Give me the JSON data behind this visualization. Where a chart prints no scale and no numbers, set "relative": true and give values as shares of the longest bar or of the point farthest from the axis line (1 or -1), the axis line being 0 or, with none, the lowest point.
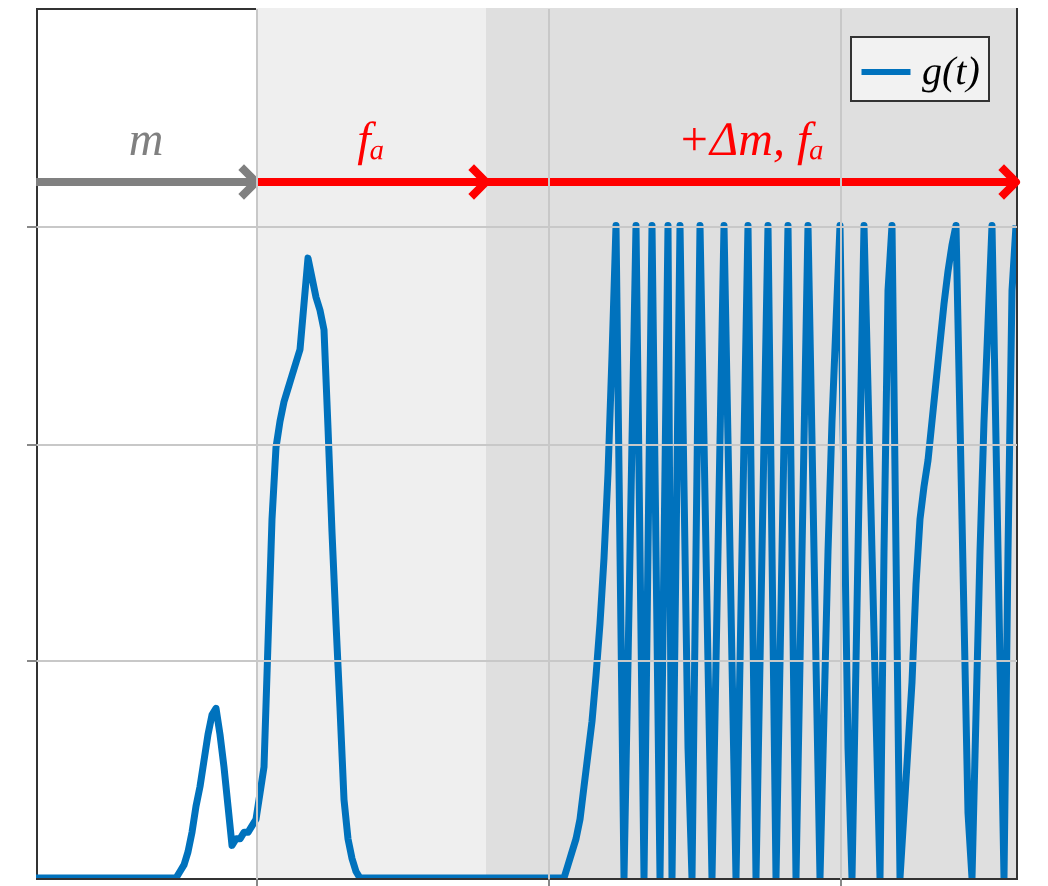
{
  "chart_data": {
    "type": "line",
    "relative": true,
    "grid": true,
    "legend": "top right",
    "categories": [
      null,
      null,
      null,
      null,
      null,
      null,
      null,
      null,
      null,
      null,
      null,
      null,
      null,
      null,
      null,
      null,
      null,
      null,
      null,
      null,
      null,
      null,
      null,
      null,
      null,
      null,
      null,
      null,
      null,
      null,
      null,
      null,
      null,
      null,
      null,
      null,
      null,
      null,
      null,
      null,
      null,
      null,
      null,
      null,
      null,
      null,
      null,
      null,
      null,
      null,
      null,
      null,
      null,
      null,
      null,
      null,
      null,
      null,
      null,
      null,
      null,
      null,
      null,
      null,
      null,
      null,
      null,
      null,
      null,
      null,
      null,
      null,
      null,
      null,
      null,
      null,
      null,
      null,
      null,
      null,
      null,
      null,
      null,
      null,
      null,
      null,
      null,
      null,
      null,
      null,
      null,
      null,
      null,
      null,
      null,
      null,
      null,
      null,
      null,
      null,
      null,
      null,
      null,
      null,
      null,
      null,
      null,
      null,
      null,
      null,
      null,
      null,
      null,
      null,
      null,
      null,
      null,
      null,
      null,
      null,
      null,
      null,
      null,
      null,
      null,
      null,
      null,
      null,
      null,
      null,
      null,
      null,
      null,
      null,
      null,
      null,
      null,
      null,
      null,
      null,
      null,
      null,
      null,
      null,
      null,
      null,
      null,
      null,
      null,
      null,
      null,
      null,
      null,
      null,
      null,
      null,
      null,
      null,
      null,
      null,
      null,
      null,
      null,
      null,
      null,
      null,
      null,
      null,
      null,
      null,
      null,
      null,
      null,
      null,
      null,
      null,
      null,
      null,
      null,
      null,
      null,
      null,
      null,
      null,
      null,
      null,
      null,
      null,
      null,
      null,
      null,
      null,
      null,
      null,
      null,
      null,
      null,
      null,
      null,
      null,
      null,
      null,
      null,
      null,
      null,
      null,
      null,
      null,
      null,
      null,
      null,
      null,
      null,
      null,
      null,
      null,
      null,
      null,
      null,
      null,
      null,
      null,
      null,
      null,
      null,
      null,
      null,
      null,
      null,
      null,
      null,
      null,
      null,
      null,
      null,
      null,
      null,
      null,
      null,
      null,
      null,
      null,
      null,
      null,
      null,
      null
    ],
    "series": [
      {
        "name": "g(t)",
        "color": "#0072bd",
        "values": [
          0,
          0,
          0,
          0,
          0,
          0,
          0,
          0,
          0,
          0,
          0,
          0,
          0,
          0,
          0,
          0,
          0,
          0,
          0,
          0,
          0,
          0,
          0,
          0,
          0,
          0,
          0,
          0,
          0,
          0,
          0,
          0,
          0,
          0,
          0,
          0,
          0.01,
          0.02,
          0.04,
          0.07,
          0.11,
          0.14,
          0.18,
          0.22,
          0.25,
          0.26,
          0.22,
          0.17,
          0.11,
          0.05,
          0.06,
          0.06,
          0.07,
          0.07,
          0.08,
          0.09,
          0.13,
          0.17,
          0.36,
          0.55,
          0.66,
          0.7,
          0.73,
          0.75,
          0.77,
          0.79,
          0.81,
          0.88,
          0.95,
          0.92,
          0.89,
          0.87,
          0.84,
          0.69,
          0.53,
          0.39,
          0.26,
          0.12,
          0.06,
          0.03,
          0.01,
          0,
          0,
          0,
          0,
          0,
          0,
          0,
          0,
          0,
          0,
          0,
          0,
          0,
          0,
          0,
          0,
          0,
          0,
          0,
          0,
          0,
          0,
          0,
          0,
          0,
          0,
          0,
          0,
          0,
          0,
          0,
          0,
          0,
          0,
          0,
          0,
          0,
          0,
          0,
          0,
          0,
          0,
          0,
          0,
          0,
          0,
          0,
          0,
          0,
          0,
          0,
          0,
          0.02,
          0.04,
          0.06,
          0.09,
          0.14,
          0.19,
          0.24,
          0.31,
          0.39,
          0.49,
          0.62,
          0.8,
          1.0,
          0.5,
          0,
          0.33,
          0.67,
          1,
          0.5,
          0,
          0.5,
          1,
          0.5,
          0,
          0.5,
          1,
          0,
          0.5,
          1,
          0.6,
          0.2,
          0,
          0.5,
          1,
          0.67,
          0.33,
          0,
          0.33,
          0.67,
          1,
          0.67,
          0.33,
          0,
          0.33,
          0.67,
          1,
          0.5,
          0,
          0.33,
          0.67,
          1,
          0.5,
          0,
          0.33,
          0.67,
          1,
          0.5,
          0,
          0.33,
          0.67,
          1,
          0.67,
          0.33,
          0,
          0.25,
          0.5,
          0.7,
          0.85,
          1,
          0.6,
          0.2,
          0,
          0.33,
          0.67,
          1,
          0.75,
          0.5,
          0.25,
          0,
          0.5,
          0.9,
          1,
          0.5,
          0,
          0.1,
          0.2,
          0.3,
          0.45,
          0.55,
          0.6,
          0.64,
          0.7,
          0.76,
          0.82,
          0.88,
          0.93,
          0.97,
          1,
          0.7,
          0.4,
          0.1,
          0,
          0.25,
          0.5,
          0.7,
          0.85,
          1,
          0.67,
          0.33,
          0,
          0.5,
          0.9,
          1
        ]
      }
    ],
    "annotations": [
      "m",
      "fₐ",
      "+Δm, fₐ"
    ]
  }
}
